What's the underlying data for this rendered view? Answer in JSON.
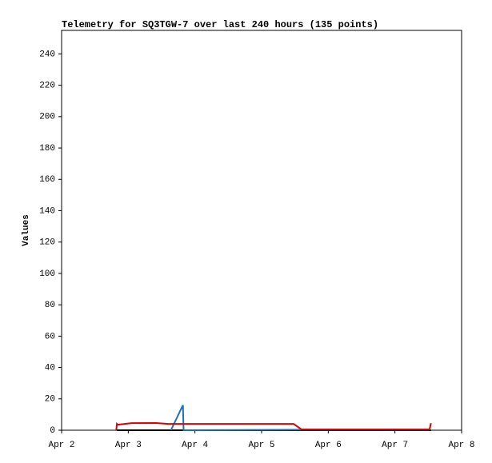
{
  "chart_data": {
    "type": "line",
    "title": "Telemetry for SQ3TGW-7 over last 240 hours (135 points)",
    "y_label": "Values",
    "xlim": [
      2,
      8
    ],
    "xticks": [
      {
        "value": 2,
        "label": "Apr 2"
      },
      {
        "value": 3,
        "label": "Apr 3"
      },
      {
        "value": 4,
        "label": "Apr 4"
      },
      {
        "value": 5,
        "label": "Apr 5"
      },
      {
        "value": 6,
        "label": "Apr 6"
      },
      {
        "value": 7,
        "label": "Apr 7"
      },
      {
        "value": 8,
        "label": "Apr 8"
      }
    ],
    "ylim": [
      0,
      255
    ],
    "yticks": [
      0,
      20,
      40,
      60,
      80,
      100,
      120,
      140,
      160,
      180,
      200,
      220,
      240
    ],
    "series": [
      {
        "color": "#000000",
        "x": [
          2.83,
          7.54
        ],
        "values": [
          0,
          0
        ]
      },
      {
        "color": "#1f6fbf",
        "x": [
          3.64,
          3.82,
          3.83,
          5.6,
          7.52
        ],
        "values": [
          0,
          16,
          0,
          0.3,
          0.3
        ]
      },
      {
        "color": "#dd0000",
        "x": [
          2.82,
          2.83,
          2.84,
          3.05,
          3.42,
          3.6,
          3.84,
          5.48,
          5.6,
          7.52,
          7.54
        ],
        "values": [
          0,
          4,
          3.5,
          4.5,
          4.6,
          4,
          4,
          4,
          0.5,
          0.5,
          4.5
        ]
      }
    ]
  }
}
